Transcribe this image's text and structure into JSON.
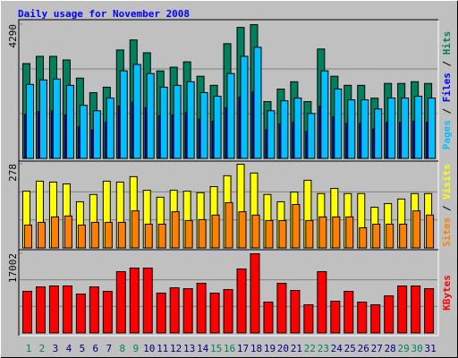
{
  "chart_data": [
    {
      "type": "bar",
      "title": "Daily usage for November 2008",
      "legend_separator": "/",
      "ylim": [
        0,
        4290
      ],
      "yticks": [
        4290
      ],
      "series": [
        {
          "name": "Hits",
          "color": "#00805c",
          "values": [
            3044,
            3276,
            3276,
            3160,
            2580,
            2116,
            2290,
            3480,
            3800,
            3390,
            2810,
            2930,
            3100,
            2640,
            2350,
            3680,
            4200,
            4290,
            1830,
            2230,
            2465,
            1830,
            3510,
            2640,
            2350,
            2350,
            1940,
            2410,
            2410,
            2465,
            2410
          ]
        },
        {
          "name": "Files",
          "color": "#0000ff",
          "values": [
            1427,
            1514,
            1531,
            1409,
            1027,
            922,
            1166,
            1688,
            1810,
            1636,
            1375,
            1409,
            1479,
            1270,
            1201,
            1636,
            1966,
            2140,
            922,
            1114,
            1166,
            870,
            1688,
            1340,
            1131,
            1131,
            957,
            1166,
            1166,
            1201,
            1166
          ]
        },
        {
          "name": "Pages",
          "color": "#00c0ff",
          "values": [
            2378,
            2523,
            2552,
            2349,
            1711,
            1537,
            1943,
            2813,
            3016,
            2726,
            2291,
            2349,
            2465,
            2117,
            2001,
            2726,
            3277,
            3567,
            1537,
            1856,
            1943,
            1450,
            2813,
            2233,
            1885,
            1885,
            1595,
            1943,
            1943,
            2001,
            1943
          ]
        }
      ]
    },
    {
      "type": "bar",
      "legend_separator": "/",
      "ylim": [
        0,
        278
      ],
      "yticks": [
        278
      ],
      "series": [
        {
          "name": "Visits",
          "color": "#ffff00",
          "values": [
            189,
            222,
            219,
            213,
            154,
            178,
            222,
            219,
            237,
            192,
            169,
            192,
            189,
            184,
            204,
            240,
            278,
            249,
            178,
            154,
            186,
            225,
            181,
            198,
            181,
            181,
            136,
            148,
            163,
            181,
            181
          ]
        },
        {
          "name": "Sites",
          "color": "#ff8000",
          "values": [
            77,
            86,
            104,
            107,
            77,
            86,
            86,
            86,
            124,
            80,
            80,
            121,
            92,
            95,
            110,
            151,
            121,
            110,
            92,
            92,
            145,
            92,
            104,
            104,
            104,
            68,
            80,
            80,
            80,
            124,
            110
          ]
        }
      ]
    },
    {
      "type": "bar",
      "ylim": [
        0,
        17002
      ],
      "yticks": [
        17002
      ],
      "categories": [
        "1",
        "2",
        "3",
        "4",
        "5",
        "6",
        "7",
        "8",
        "9",
        "10",
        "11",
        "12",
        "13",
        "14",
        "15",
        "16",
        "17",
        "18",
        "19",
        "20",
        "21",
        "22",
        "23",
        "24",
        "25",
        "26",
        "27",
        "28",
        "29",
        "30",
        "31"
      ],
      "category_colors": [
        "#00805c",
        "#00805c",
        "#000080",
        "#000080",
        "#000080",
        "#000080",
        "#000080",
        "#00805c",
        "#00805c",
        "#000080",
        "#000080",
        "#000080",
        "#000080",
        "#000080",
        "#00805c",
        "#00805c",
        "#000080",
        "#000080",
        "#000080",
        "#000080",
        "#000080",
        "#00805c",
        "#00805c",
        "#000080",
        "#000080",
        "#000080",
        "#000080",
        "#000080",
        "#00805c",
        "#00805c",
        "#000080"
      ],
      "series": [
        {
          "name": "KBytes",
          "color": "#ff0000",
          "values": [
            8977,
            9932,
            10123,
            10123,
            8404,
            9932,
            8977,
            13179,
            13943,
            13943,
            8595,
            9741,
            9550,
            10696,
            8595,
            9359,
            13752,
            17002,
            6685,
            10696,
            9168,
            6112,
            13179,
            6876,
            8977,
            6685,
            6112,
            8022,
            10123,
            10123,
            9550
          ]
        }
      ]
    }
  ]
}
